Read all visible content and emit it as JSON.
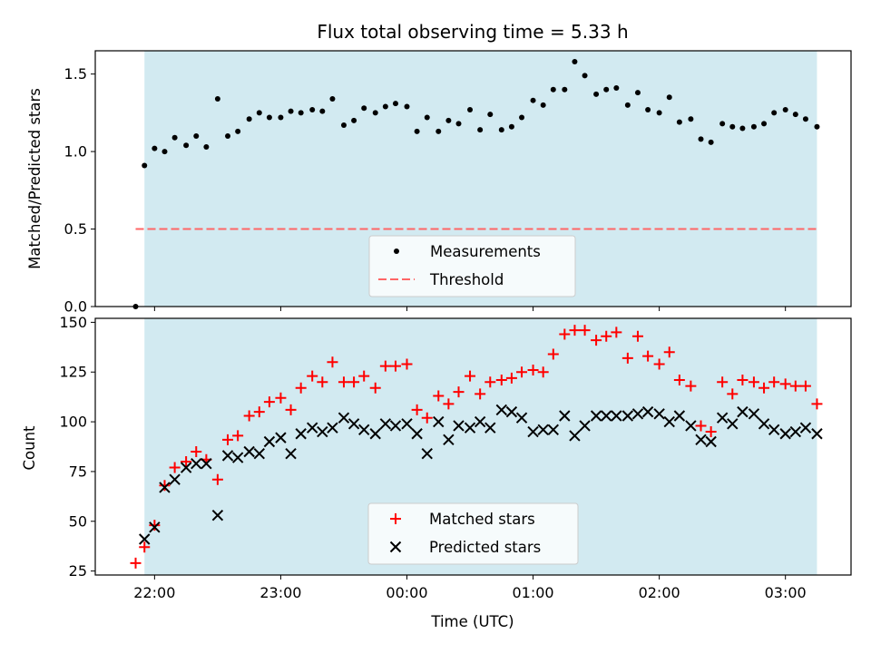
{
  "chart_data": [
    {
      "type": "scatter",
      "title": "Flux total observing time = 5.33 h",
      "xlabel": "",
      "ylabel": "Matched/Predicted stars",
      "ylim": [
        0,
        1.65
      ],
      "yticks": [
        "0.0",
        "0.5",
        "1.0",
        "1.5"
      ],
      "grid": false,
      "legend_position": "bottom-center",
      "observing_window_color": "#add8e6",
      "series": [
        {
          "name": "Measurements",
          "marker": "dot",
          "color": "#000000",
          "x": [
            -0.15,
            -0.08,
            0.0,
            0.08,
            0.16,
            0.25,
            0.33,
            0.41,
            0.5,
            0.58,
            0.66,
            0.75,
            0.83,
            0.91,
            1.0,
            1.08,
            1.16,
            1.25,
            1.33,
            1.41,
            1.5,
            1.58,
            1.66,
            1.75,
            1.83,
            1.91,
            2.0,
            2.08,
            2.16,
            2.25,
            2.33,
            2.41,
            2.5,
            2.58,
            2.66,
            2.75,
            2.83,
            2.91,
            3.0,
            3.08,
            3.16,
            3.25,
            3.33,
            3.41,
            3.5,
            3.58,
            3.66,
            3.75,
            3.83,
            3.91,
            4.0,
            4.08,
            4.16,
            4.25,
            4.33,
            4.41,
            4.5,
            4.58,
            4.66,
            4.75,
            4.83,
            4.91,
            5.0,
            5.08,
            5.16,
            5.25
          ],
          "y": [
            0.0,
            0.91,
            1.02,
            1.0,
            1.09,
            1.04,
            1.1,
            1.03,
            1.34,
            1.1,
            1.13,
            1.21,
            1.25,
            1.22,
            1.22,
            1.26,
            1.25,
            1.27,
            1.26,
            1.34,
            1.17,
            1.2,
            1.28,
            1.25,
            1.29,
            1.31,
            1.29,
            1.13,
            1.22,
            1.13,
            1.2,
            1.18,
            1.27,
            1.14,
            1.24,
            1.14,
            1.16,
            1.22,
            1.33,
            1.3,
            1.4,
            1.4,
            1.58,
            1.49,
            1.37,
            1.4,
            1.41,
            1.3,
            1.38,
            1.27,
            1.25,
            1.35,
            1.19,
            1.21,
            1.08,
            1.06,
            1.18,
            1.16,
            1.15,
            1.16,
            1.18,
            1.25,
            1.27,
            1.24,
            1.21,
            1.16
          ]
        },
        {
          "name": "Threshold",
          "style": "dashed",
          "color": "#ff6666",
          "value": 0.5
        }
      ]
    },
    {
      "type": "scatter",
      "xlabel": "Time (UTC)",
      "ylabel": "Count",
      "ylim": [
        23,
        152
      ],
      "yticks": [
        "25",
        "50",
        "75",
        "100",
        "125",
        "150"
      ],
      "xticks": [
        "22:00",
        "23:00",
        "00:00",
        "01:00",
        "02:00",
        "03:00"
      ],
      "grid": false,
      "legend_position": "bottom-center",
      "observing_window_color": "#add8e6",
      "series": [
        {
          "name": "Matched stars",
          "marker": "plus",
          "color": "#ff0000",
          "x": [
            -0.15,
            -0.08,
            0.0,
            0.08,
            0.16,
            0.25,
            0.33,
            0.41,
            0.5,
            0.58,
            0.66,
            0.75,
            0.83,
            0.91,
            1.0,
            1.08,
            1.16,
            1.25,
            1.33,
            1.41,
            1.5,
            1.58,
            1.66,
            1.75,
            1.83,
            1.91,
            2.0,
            2.08,
            2.16,
            2.25,
            2.33,
            2.41,
            2.5,
            2.58,
            2.66,
            2.75,
            2.83,
            2.91,
            3.0,
            3.08,
            3.16,
            3.25,
            3.33,
            3.41,
            3.5,
            3.58,
            3.66,
            3.75,
            3.83,
            3.91,
            4.0,
            4.08,
            4.16,
            4.25,
            4.33,
            4.41,
            4.5,
            4.58,
            4.66,
            4.75,
            4.83,
            4.91,
            5.0,
            5.08,
            5.16,
            5.25
          ],
          "y": [
            29,
            37,
            48,
            68,
            77,
            80,
            85,
            81,
            71,
            91,
            93,
            103,
            105,
            110,
            112,
            106,
            117,
            123,
            120,
            130,
            120,
            120,
            123,
            117,
            128,
            128,
            129,
            106,
            102,
            113,
            109,
            115,
            123,
            114,
            120,
            121,
            122,
            125,
            126,
            125,
            134,
            144,
            146,
            146,
            141,
            143,
            145,
            132,
            143,
            133,
            129,
            135,
            121,
            118,
            98,
            95,
            120,
            114,
            121,
            120,
            117,
            120,
            119,
            118,
            118,
            109
          ]
        },
        {
          "name": "Predicted stars",
          "marker": "x",
          "color": "#000000",
          "x": [
            -0.08,
            0.0,
            0.08,
            0.16,
            0.25,
            0.33,
            0.41,
            0.5,
            0.58,
            0.66,
            0.75,
            0.83,
            0.91,
            1.0,
            1.08,
            1.16,
            1.25,
            1.33,
            1.41,
            1.5,
            1.58,
            1.66,
            1.75,
            1.83,
            1.91,
            2.0,
            2.08,
            2.16,
            2.25,
            2.33,
            2.41,
            2.5,
            2.58,
            2.66,
            2.75,
            2.83,
            2.91,
            3.0,
            3.08,
            3.16,
            3.25,
            3.33,
            3.41,
            3.5,
            3.58,
            3.66,
            3.75,
            3.83,
            3.91,
            4.0,
            4.08,
            4.16,
            4.25,
            4.33,
            4.41,
            4.5,
            4.58,
            4.66,
            4.75,
            4.83,
            4.91,
            5.0,
            5.08,
            5.16,
            5.25
          ],
          "y": [
            41,
            47,
            67,
            71,
            77,
            79,
            79,
            53,
            83,
            82,
            85,
            84,
            90,
            92,
            84,
            94,
            97,
            95,
            97,
            102,
            99,
            96,
            94,
            99,
            98,
            99,
            94,
            84,
            100,
            91,
            98,
            97,
            100,
            97,
            106,
            105,
            102,
            95,
            96,
            96,
            103,
            93,
            98,
            103,
            103,
            103,
            103,
            104,
            105,
            104,
            100,
            103,
            98,
            91,
            90,
            102,
            99,
            105,
            104,
            99,
            96,
            94,
            95,
            97,
            94
          ]
        }
      ]
    }
  ]
}
